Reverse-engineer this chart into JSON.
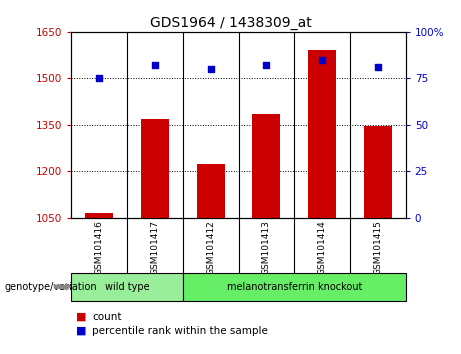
{
  "title": "GDS1964 / 1438309_at",
  "samples": [
    "GSM101416",
    "GSM101417",
    "GSM101412",
    "GSM101413",
    "GSM101414",
    "GSM101415"
  ],
  "count_values": [
    1065,
    1370,
    1225,
    1385,
    1590,
    1345
  ],
  "percentile_values": [
    75,
    82,
    80,
    82,
    85,
    81
  ],
  "ylim_left": [
    1050,
    1650
  ],
  "ylim_right": [
    0,
    100
  ],
  "yticks_left": [
    1050,
    1200,
    1350,
    1500,
    1650
  ],
  "yticks_right": [
    0,
    25,
    50,
    75,
    100
  ],
  "bar_color": "#cc0000",
  "dot_color": "#0000cc",
  "groups": [
    {
      "label": "wild type",
      "indices": [
        0,
        1
      ],
      "color": "#99ee99"
    },
    {
      "label": "melanotransferrin knockout",
      "indices": [
        2,
        3,
        4,
        5
      ],
      "color": "#66ee66"
    }
  ],
  "group_label": "genotype/variation",
  "legend_count_label": "count",
  "legend_percentile_label": "percentile rank within the sample",
  "left_tick_color": "#cc0000",
  "right_tick_color": "#0000cc",
  "bg_color": "#ffffff",
  "tick_area_bg": "#cccccc",
  "bar_width": 0.5
}
